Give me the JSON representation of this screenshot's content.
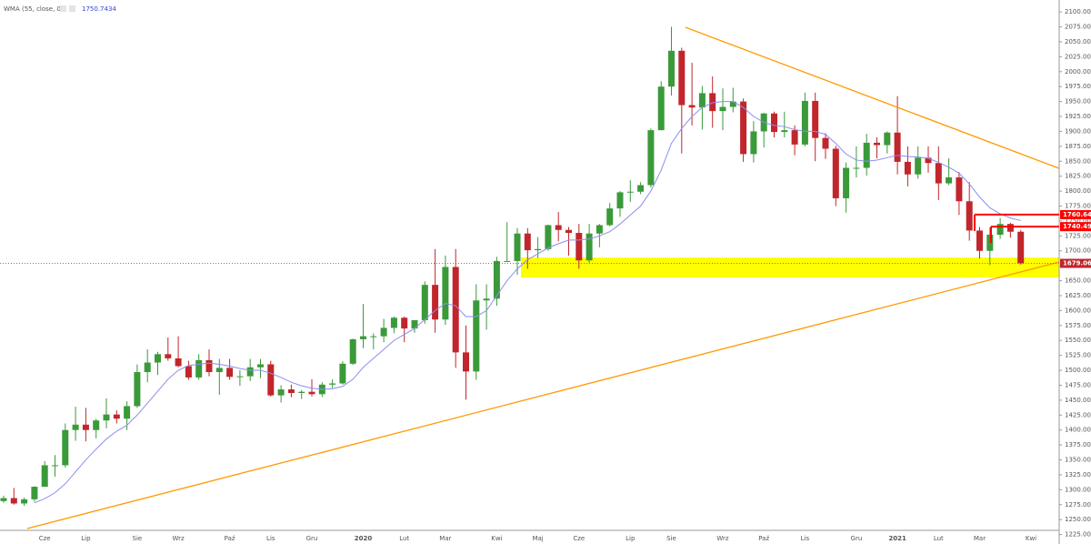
{
  "chart_data": {
    "type": "candlestick",
    "legend_label": "WMA (55, close, 0)",
    "categories": [
      null,
      null,
      null,
      null,
      "Cze",
      null,
      null,
      null,
      "Lip",
      null,
      null,
      null,
      null,
      "Sie",
      null,
      null,
      null,
      "Wrz",
      null,
      null,
      null,
      null,
      "Paź",
      null,
      null,
      null,
      "Lis",
      null,
      null,
      null,
      "Gru",
      null,
      null,
      null,
      null,
      "2020",
      null,
      null,
      null,
      "Lut",
      null,
      null,
      null,
      "Mar",
      null,
      null,
      null,
      null,
      "Kwi",
      null,
      null,
      null,
      "Maj",
      null,
      null,
      null,
      "Cze",
      null,
      null,
      null,
      null,
      "Lip",
      null,
      null,
      null,
      "Sie",
      null,
      null,
      null,
      null,
      "Wrz",
      null,
      null,
      null,
      "Paź",
      null,
      null,
      null,
      "Lis",
      null,
      null,
      null,
      null,
      "Gru",
      null,
      null,
      null,
      "2021",
      null,
      null,
      null,
      "Lut",
      null,
      null,
      null,
      "Mar",
      null,
      null,
      null,
      null,
      "Kwi"
    ],
    "open": [
      1281,
      1286,
      1277,
      1284,
      1305,
      1341,
      1341,
      1400,
      1409,
      1400,
      1416,
      1426,
      1419,
      1440,
      1497,
      1513,
      1527,
      1520,
      1507,
      1488,
      1517,
      1497,
      1504,
      1489,
      1490,
      1505,
      1510,
      1458,
      1468,
      1462,
      1464,
      1460,
      1476,
      1478,
      1511,
      1552,
      1557,
      1557,
      1571,
      1588,
      1570,
      1584,
      1643,
      1585,
      1673,
      1530,
      1498,
      1617,
      1620,
      1683,
      1683,
      1729,
      1701,
      1703,
      1743,
      1735,
      1730,
      1684,
      1729,
      1743,
      1771,
      1798,
      1799,
      1810,
      1902,
      1975,
      2035,
      1944,
      1940,
      1964,
      1934,
      1941,
      1950,
      1862,
      1900,
      1930,
      1899,
      1902,
      1878,
      1951,
      1889,
      1871,
      1788,
      1839,
      1839,
      1881,
      1877,
      1898,
      1849,
      1828,
      1856,
      1847,
      1813,
      1823,
      1783,
      1734,
      1700,
      1727,
      1745,
      1732,
      null
    ],
    "high": [
      1290,
      1303,
      1287,
      1306,
      1348,
      1358,
      1411,
      1439,
      1437,
      1419,
      1453,
      1433,
      1448,
      1510,
      1535,
      1531,
      1555,
      1557,
      1516,
      1527,
      1535,
      1519,
      1519,
      1500,
      1519,
      1519,
      1516,
      1475,
      1476,
      1467,
      1485,
      1480,
      1485,
      1515,
      1553,
      1611,
      1562,
      1586,
      1590,
      1590,
      1584,
      1649,
      1703,
      1692,
      1703,
      1575,
      1644,
      1644,
      1690,
      1748,
      1738,
      1738,
      1723,
      1744,
      1765,
      1740,
      1745,
      1745,
      1745,
      1780,
      1800,
      1818,
      1815,
      1905,
      1984,
      2075,
      2040,
      2015,
      1976,
      1992,
      1972,
      1973,
      1955,
      1917,
      1931,
      1933,
      1933,
      1910,
      1965,
      1965,
      1897,
      1876,
      1848,
      1875,
      1896,
      1890,
      1900,
      1959,
      1875,
      1875,
      1875,
      1875,
      1855,
      1832,
      1815,
      1740,
      1739,
      1755,
      1747,
      1735,
      null
    ],
    "low": [
      1278,
      1275,
      1273,
      1280,
      1305,
      1322,
      1337,
      1382,
      1381,
      1386,
      1403,
      1411,
      1400,
      1437,
      1480,
      1492,
      1516,
      1505,
      1484,
      1484,
      1490,
      1459,
      1484,
      1474,
      1482,
      1487,
      1456,
      1446,
      1455,
      1452,
      1456,
      1455,
      1470,
      1476,
      1509,
      1537,
      1535,
      1547,
      1562,
      1547,
      1563,
      1578,
      1563,
      1576,
      1504,
      1451,
      1484,
      1568,
      1608,
      1682,
      1660,
      1670,
      1688,
      1700,
      1716,
      1692,
      1670,
      1680,
      1706,
      1741,
      1757,
      1782,
      1795,
      1806,
      1902,
      1960,
      1863,
      1910,
      1903,
      1906,
      1902,
      1932,
      1849,
      1848,
      1873,
      1890,
      1890,
      1860,
      1875,
      1850,
      1854,
      1775,
      1764,
      1823,
      1826,
      1855,
      1863,
      1828,
      1808,
      1821,
      1831,
      1785,
      1810,
      1760,
      1717,
      1687,
      1676,
      1720,
      1722,
      1677,
      null
    ],
    "close": [
      1286,
      1277,
      1284,
      1305,
      1341,
      1341,
      1400,
      1409,
      1400,
      1416,
      1426,
      1419,
      1440,
      1497,
      1513,
      1527,
      1520,
      1507,
      1488,
      1517,
      1497,
      1504,
      1489,
      1490,
      1505,
      1510,
      1458,
      1468,
      1462,
      1464,
      1460,
      1476,
      1478,
      1511,
      1552,
      1557,
      1557,
      1571,
      1588,
      1570,
      1584,
      1643,
      1585,
      1673,
      1530,
      1498,
      1617,
      1620,
      1683,
      1683,
      1729,
      1701,
      1703,
      1743,
      1735,
      1730,
      1684,
      1729,
      1743,
      1771,
      1798,
      1799,
      1810,
      1902,
      1975,
      2035,
      1944,
      1940,
      1964,
      1934,
      1941,
      1950,
      1862,
      1900,
      1930,
      1899,
      1902,
      1878,
      1951,
      1889,
      1871,
      1788,
      1839,
      1839,
      1881,
      1877,
      1898,
      1849,
      1828,
      1856,
      1847,
      1813,
      1823,
      1783,
      1734,
      1700,
      1727,
      1745,
      1732,
      1679.06,
      null
    ],
    "up_color": "#3a9a3a",
    "down_color": "#c0262c",
    "series": [
      {
        "name": "WMA",
        "color": "#8a8ef0",
        "values": [
          null,
          null,
          null,
          1278,
          1285,
          1295,
          1310,
          1330,
          1350,
          1368,
          1385,
          1398,
          1408,
          1425,
          1445,
          1465,
          1485,
          1500,
          1508,
          1510,
          1512,
          1510,
          1507,
          1503,
          1500,
          1500,
          1495,
          1488,
          1480,
          1474,
          1470,
          1468,
          1469,
          1473,
          1485,
          1505,
          1520,
          1535,
          1550,
          1560,
          1570,
          1585,
          1600,
          1612,
          1608,
          1590,
          1590,
          1600,
          1625,
          1650,
          1670,
          1685,
          1695,
          1705,
          1712,
          1718,
          1718,
          1720,
          1725,
          1732,
          1745,
          1760,
          1775,
          1800,
          1835,
          1880,
          1905,
          1925,
          1940,
          1948,
          1950,
          1950,
          1940,
          1925,
          1915,
          1910,
          1908,
          1903,
          1900,
          1900,
          1895,
          1880,
          1862,
          1852,
          1850,
          1852,
          1856,
          1860,
          1858,
          1857,
          1855,
          1848,
          1840,
          1830,
          1812,
          1790,
          1772,
          1762,
          1755,
          1750.7434,
          null
        ]
      }
    ],
    "price_lines": [
      {
        "value": 1760.64,
        "color": "#ff0000"
      },
      {
        "value": 1740.49,
        "color": "#ff0000"
      }
    ],
    "ylim": [
      1232,
      2120
    ],
    "yticks": [
      {
        "value": 1225,
        "label": "1225.00"
      },
      {
        "value": 1250,
        "label": "1250.00"
      },
      {
        "value": 1275,
        "label": "1275.00"
      },
      {
        "value": 1300,
        "label": "1300.00"
      },
      {
        "value": 1325,
        "label": "1325.00"
      },
      {
        "value": 1350,
        "label": "1350.00"
      },
      {
        "value": 1375,
        "label": "1375.00"
      },
      {
        "value": 1400,
        "label": "1400.00"
      },
      {
        "value": 1425,
        "label": "1425.00"
      },
      {
        "value": 1450,
        "label": "1450.00"
      },
      {
        "value": 1475,
        "label": "1475.00"
      },
      {
        "value": 1500,
        "label": "1500.00"
      },
      {
        "value": 1525,
        "label": "1525.00"
      },
      {
        "value": 1550,
        "label": "1550.00"
      },
      {
        "value": 1575,
        "label": "1575.00"
      },
      {
        "value": 1600,
        "label": "1600.00"
      },
      {
        "value": 1625,
        "label": "1625.00"
      },
      {
        "value": 1650,
        "label": "1650.00"
      },
      {
        "value": 1675,
        "label": "1675.00"
      },
      {
        "value": 1700,
        "label": "1700.00"
      },
      {
        "value": 1725,
        "label": "1725.00"
      },
      {
        "value": 1750,
        "label": "1750.00"
      },
      {
        "value": 1775,
        "label": "1775.00"
      },
      {
        "value": 1800,
        "label": "1800.00"
      },
      {
        "value": 1825,
        "label": "1825.00"
      },
      {
        "value": 1850,
        "label": "1850.00"
      },
      {
        "value": 1875,
        "label": "1875.00"
      },
      {
        "value": 1900,
        "label": "1900.00"
      },
      {
        "value": 1925,
        "label": "1925.00"
      },
      {
        "value": 1950,
        "label": "1950.00"
      },
      {
        "value": 1975,
        "label": "1975.00"
      },
      {
        "value": 2000,
        "label": "2000.00"
      },
      {
        "value": 2025,
        "label": "2025.00"
      },
      {
        "value": 2050,
        "label": "2050.00"
      },
      {
        "value": 2075,
        "label": "2075.00"
      },
      {
        "value": 2100,
        "label": "2100.00"
      }
    ]
  }
}
